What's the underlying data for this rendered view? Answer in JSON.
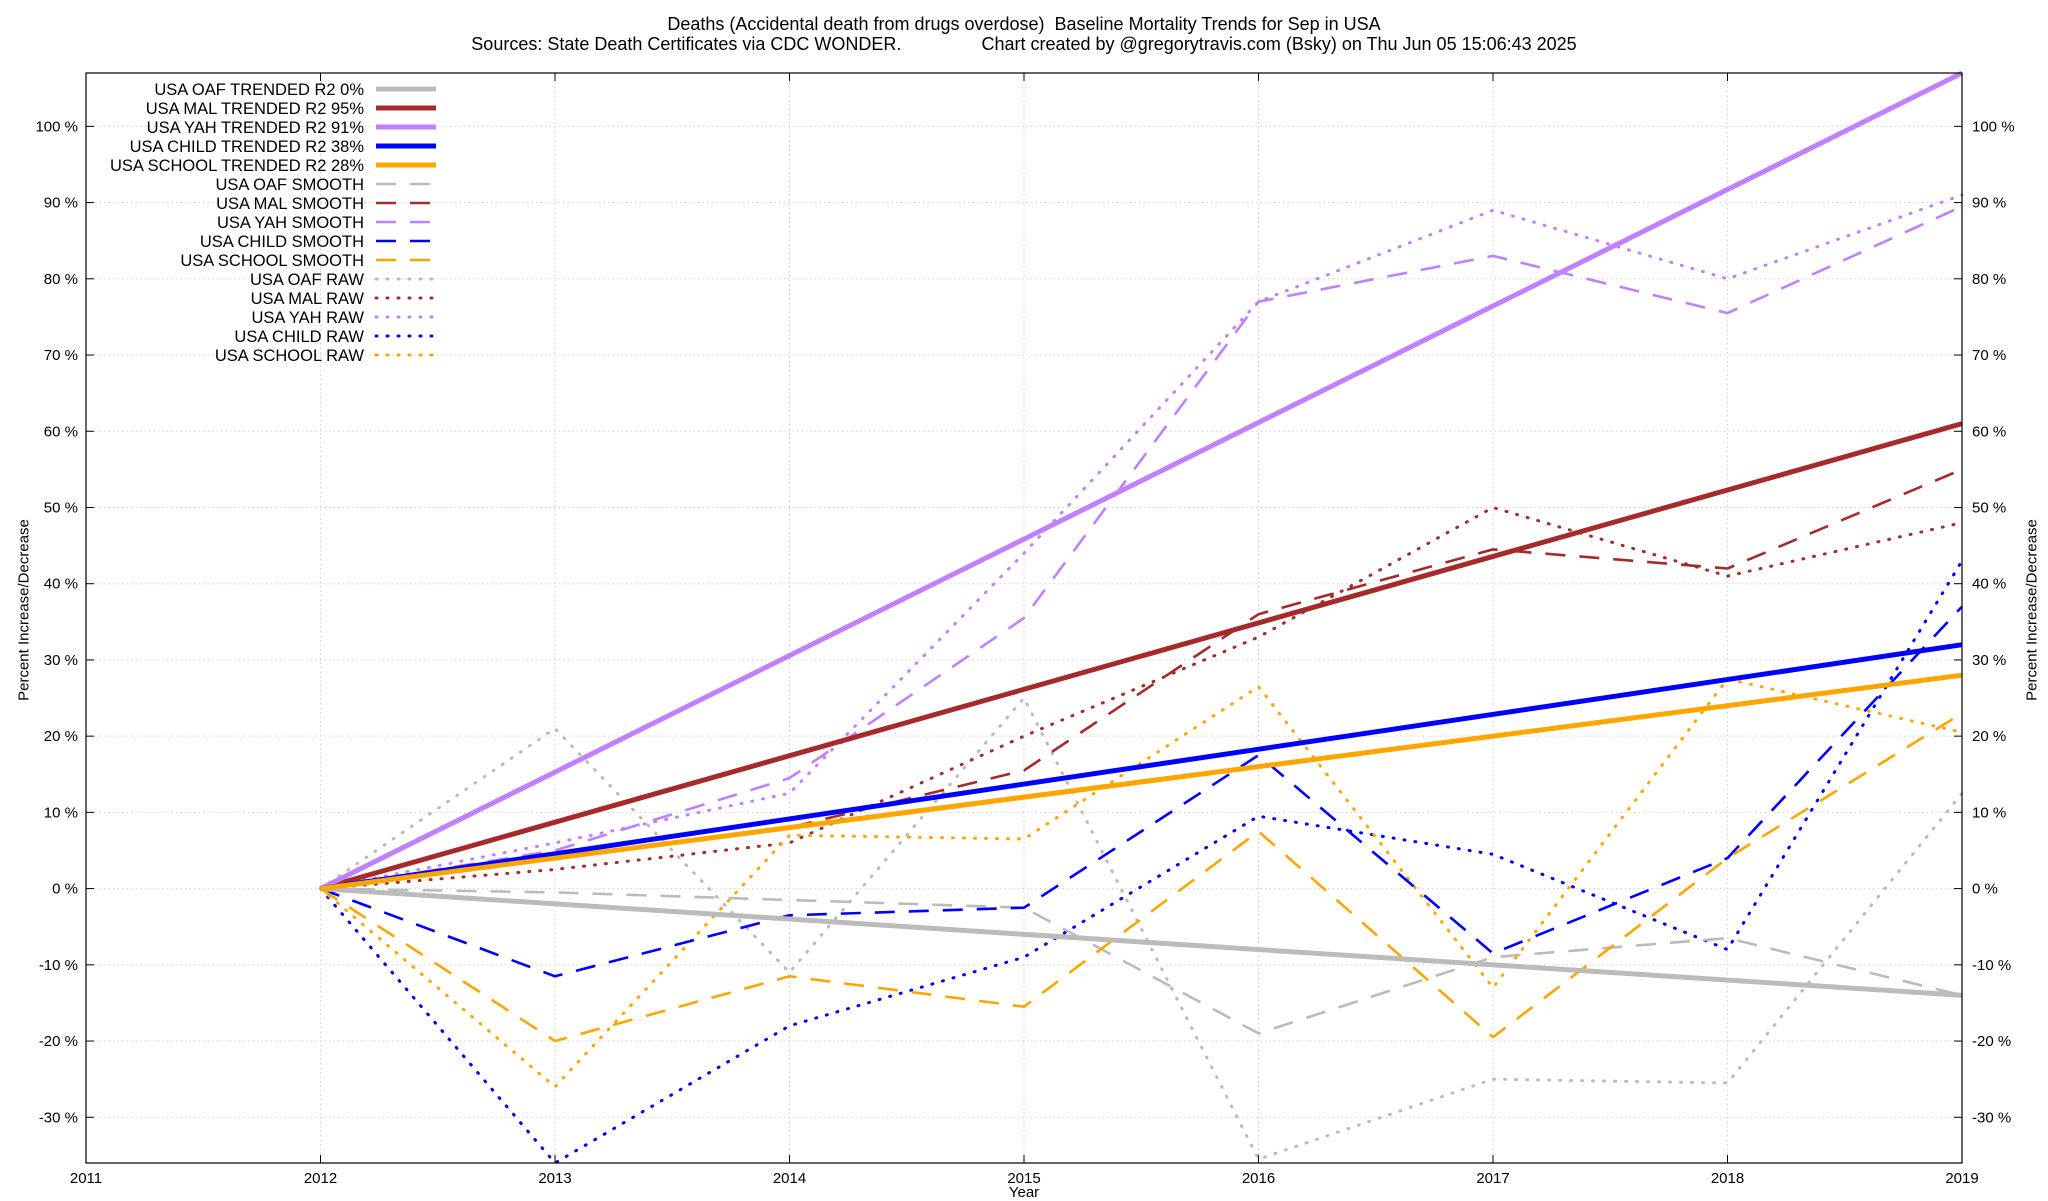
{
  "chart_data": {
    "type": "line",
    "title": "Deaths (Accidental death from drugs overdose)  Baseline Mortality Trends for Sep in USA",
    "subtitle": "Sources: State Death Certificates via CDC WONDER.                Chart created by @gregorytravis.com (Bsky) on Thu Jun 05 15:06:43 2025",
    "xlabel": "Year",
    "ylabel": "Percent Increase/Decrease",
    "xlim": [
      2011,
      2019
    ],
    "ylim": [
      -36,
      107
    ],
    "x_ticks": [
      "2011",
      "2012",
      "2013",
      "2014",
      "2015",
      "2016",
      "2017",
      "2018",
      "2019"
    ],
    "y_ticks": [
      {
        "v": 100,
        "label": "100 %"
      },
      {
        "v": 90,
        "label": "90 %"
      },
      {
        "v": 80,
        "label": "80 %"
      },
      {
        "v": 70,
        "label": "70 %"
      },
      {
        "v": 60,
        "label": "60 %"
      },
      {
        "v": 50,
        "label": "50 %"
      },
      {
        "v": 40,
        "label": "40 %"
      },
      {
        "v": 30,
        "label": "30 %"
      },
      {
        "v": 20,
        "label": "20 %"
      },
      {
        "v": 10,
        "label": "10 %"
      },
      {
        "v": 0,
        "label": "0 %"
      },
      {
        "v": -10,
        "label": "-10 %"
      },
      {
        "v": -20,
        "label": "-20 %"
      },
      {
        "v": -30,
        "label": "-30 %"
      }
    ],
    "grid": true,
    "legend_position": "top-left",
    "series": [
      {
        "name": "USA OAF TRENDED R2   0%",
        "style": "trend",
        "color": "#bbbbbb",
        "x": [
          2012,
          2019
        ],
        "y": [
          0,
          -14
        ]
      },
      {
        "name": "USA MAL TRENDED R2  95%",
        "style": "trend",
        "color": "#a52a2a",
        "x": [
          2012,
          2019
        ],
        "y": [
          0,
          61
        ]
      },
      {
        "name": "USA YAH TRENDED R2  91%",
        "style": "trend",
        "color": "#c080ff",
        "x": [
          2012,
          2019
        ],
        "y": [
          0,
          107
        ]
      },
      {
        "name": "USA CHILD TRENDED R2  38%",
        "style": "trend",
        "color": "#0000ff",
        "x": [
          2012,
          2019
        ],
        "y": [
          0,
          32
        ]
      },
      {
        "name": "USA SCHOOL TRENDED R2  28%",
        "style": "trend",
        "color": "#ffa500",
        "x": [
          2012,
          2019
        ],
        "y": [
          0,
          28
        ]
      },
      {
        "name": "USA OAF SMOOTH",
        "style": "smooth",
        "color": "#bbbbbb",
        "x": [
          2012,
          2013,
          2014,
          2015,
          2016,
          2017,
          2018,
          2019
        ],
        "y": [
          0,
          -0.5,
          -1.5,
          -2.5,
          -19,
          -9,
          -6.5,
          -14
        ]
      },
      {
        "name": "USA MAL SMOOTH",
        "style": "smooth",
        "color": "#a52a2a",
        "x": [
          2012,
          2013,
          2014,
          2015,
          2016,
          2017,
          2018,
          2019
        ],
        "y": [
          0,
          4,
          8,
          15.5,
          36,
          44.5,
          42,
          55
        ]
      },
      {
        "name": "USA YAH SMOOTH",
        "style": "smooth",
        "color": "#c080ff",
        "x": [
          2012,
          2013,
          2014,
          2015,
          2016,
          2017,
          2018,
          2019
        ],
        "y": [
          0,
          5,
          14.5,
          35.5,
          77,
          83,
          75.5,
          89.5
        ]
      },
      {
        "name": "USA CHILD SMOOTH",
        "style": "smooth",
        "color": "#0000ff",
        "x": [
          2012,
          2013,
          2014,
          2015,
          2016,
          2017,
          2018,
          2019
        ],
        "y": [
          0,
          -11.5,
          -3.5,
          -2.5,
          17.5,
          -8.5,
          4,
          37
        ]
      },
      {
        "name": "USA SCHOOL SMOOTH",
        "style": "smooth",
        "color": "#ffa500",
        "x": [
          2012,
          2013,
          2014,
          2015,
          2016,
          2017,
          2018,
          2019
        ],
        "y": [
          0,
          -20,
          -11.5,
          -15.5,
          7.5,
          -19.5,
          4,
          23
        ]
      },
      {
        "name": "USA OAF RAW",
        "style": "raw",
        "color": "#bbbbbb",
        "x": [
          2012,
          2013,
          2014,
          2015,
          2016,
          2017,
          2018,
          2019
        ],
        "y": [
          0,
          21,
          -11,
          25,
          -35.5,
          -25,
          -25.5,
          12.5
        ]
      },
      {
        "name": "USA MAL RAW",
        "style": "raw",
        "color": "#a52a2a",
        "x": [
          2012,
          2013,
          2014,
          2015,
          2016,
          2017,
          2018,
          2019
        ],
        "y": [
          0,
          2.5,
          6,
          20,
          33,
          50,
          41,
          48
        ]
      },
      {
        "name": "USA YAH RAW",
        "style": "raw",
        "color": "#c080ff",
        "x": [
          2012,
          2013,
          2014,
          2015,
          2016,
          2017,
          2018,
          2019
        ],
        "y": [
          0,
          6,
          12.5,
          44,
          77,
          89,
          80,
          91
        ]
      },
      {
        "name": "USA CHILD RAW",
        "style": "raw",
        "color": "#0000ff",
        "x": [
          2012,
          2013,
          2014,
          2015,
          2016,
          2017,
          2018,
          2019
        ],
        "y": [
          0,
          -36,
          -18,
          -9,
          9.5,
          4.5,
          -8,
          43
        ]
      },
      {
        "name": "USA SCHOOL RAW",
        "style": "raw",
        "color": "#ffa500",
        "x": [
          2012,
          2013,
          2014,
          2015,
          2016,
          2017,
          2018,
          2019
        ],
        "y": [
          0,
          -26,
          7,
          6.5,
          26.5,
          -13,
          27.5,
          20.5
        ]
      }
    ]
  }
}
